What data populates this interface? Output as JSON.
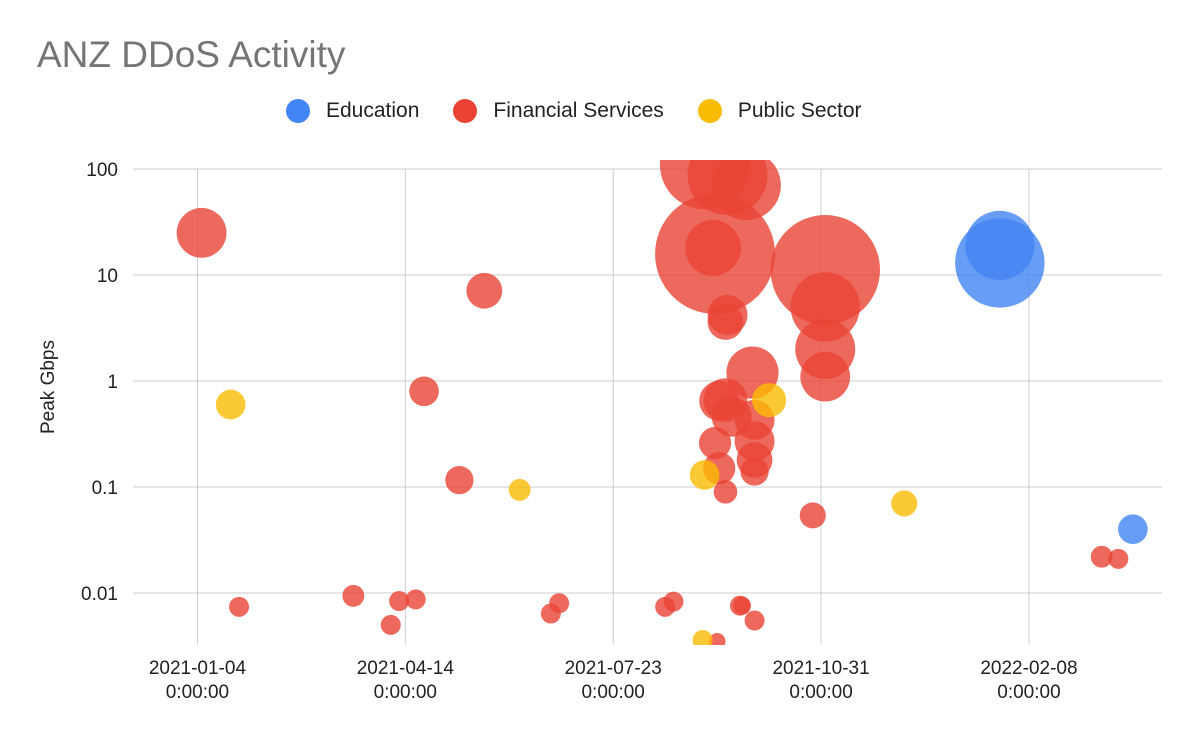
{
  "chart_data": {
    "type": "bubble",
    "title": "ANZ DDoS Activity",
    "xlabel": "",
    "ylabel": "Peak Gbps",
    "yscale": "log",
    "ylim": [
      0.0033,
      100
    ],
    "xlim": [
      "2020-12-04",
      "2022-04-13"
    ],
    "yticks": [
      "100",
      "10",
      "1",
      "0.1",
      "0.01"
    ],
    "xticks": [
      [
        "2021-01-04",
        "0:00:00"
      ],
      [
        "2021-04-14",
        "0:00:00"
      ],
      [
        "2021-07-23",
        "0:00:00"
      ],
      [
        "2021-10-31",
        "0:00:00"
      ],
      [
        "2022-02-08",
        "0:00:00"
      ]
    ],
    "grid": true,
    "legend": "top",
    "series": [
      {
        "name": "Education",
        "color": "#4285F4",
        "points": [
          {
            "x": "2022-01-25",
            "y": 19,
            "size": 12
          },
          {
            "x": "2022-01-25",
            "y": 13,
            "size": 20
          },
          {
            "x": "2022-03-30",
            "y": 0.04,
            "size": 2.2
          }
        ]
      },
      {
        "name": "Financial Services",
        "color": "#EA4335",
        "points": [
          {
            "x": "2021-01-06",
            "y": 25,
            "size": 6.2
          },
          {
            "x": "2021-01-24",
            "y": 0.0074,
            "size": 1
          },
          {
            "x": "2021-03-20",
            "y": 0.0094,
            "size": 1.2
          },
          {
            "x": "2021-04-07",
            "y": 0.005,
            "size": 1
          },
          {
            "x": "2021-04-11",
            "y": 0.0084,
            "size": 1
          },
          {
            "x": "2021-04-19",
            "y": 0.0087,
            "size": 1
          },
          {
            "x": "2021-04-23",
            "y": 0.8,
            "size": 2.2
          },
          {
            "x": "2021-05-10",
            "y": 0.116,
            "size": 2
          },
          {
            "x": "2021-05-22",
            "y": 7.1,
            "size": 3.2
          },
          {
            "x": "2021-06-23",
            "y": 0.0064,
            "size": 1
          },
          {
            "x": "2021-06-27",
            "y": 0.008,
            "size": 1
          },
          {
            "x": "2021-08-17",
            "y": 0.0074,
            "size": 1
          },
          {
            "x": "2021-08-21",
            "y": 0.0083,
            "size": 1
          },
          {
            "x": "2021-09-11",
            "y": 0.0035,
            "size": 0.7
          },
          {
            "x": "2021-09-22",
            "y": 0.0076,
            "size": 1
          },
          {
            "x": "2021-09-23",
            "y": 0.0076,
            "size": 0.8
          },
          {
            "x": "2021-09-29",
            "y": 0.0055,
            "size": 1
          },
          {
            "x": "2021-09-10",
            "y": 15.8,
            "size": 36
          },
          {
            "x": "2021-09-09",
            "y": 18,
            "size": 7.8
          },
          {
            "x": "2021-09-05",
            "y": 110,
            "size": 20
          },
          {
            "x": "2021-09-16",
            "y": 88,
            "size": 16
          },
          {
            "x": "2021-09-25",
            "y": 70,
            "size": 12
          },
          {
            "x": "2021-09-16",
            "y": 4.2,
            "size": 4
          },
          {
            "x": "2021-09-15",
            "y": 3.6,
            "size": 3.2
          },
          {
            "x": "2021-11-02",
            "y": 11.2,
            "size": 30
          },
          {
            "x": "2021-11-02",
            "y": 5,
            "size": 12
          },
          {
            "x": "2021-11-02",
            "y": 2,
            "size": 9
          },
          {
            "x": "2021-11-02",
            "y": 1.1,
            "size": 6.2
          },
          {
            "x": "2021-09-28",
            "y": 1.2,
            "size": 6.8
          },
          {
            "x": "2021-09-15",
            "y": 0.66,
            "size": 4.8
          },
          {
            "x": "2021-09-12",
            "y": 0.65,
            "size": 4
          },
          {
            "x": "2021-09-18",
            "y": 0.46,
            "size": 4
          },
          {
            "x": "2021-09-29",
            "y": 0.43,
            "size": 4
          },
          {
            "x": "2021-09-29",
            "y": 0.27,
            "size": 4
          },
          {
            "x": "2021-09-29",
            "y": 0.18,
            "size": 3.2
          },
          {
            "x": "2021-09-29",
            "y": 0.14,
            "size": 2
          },
          {
            "x": "2021-09-10",
            "y": 0.26,
            "size": 2.6
          },
          {
            "x": "2021-09-12",
            "y": 0.15,
            "size": 2.6
          },
          {
            "x": "2021-09-15",
            "y": 0.09,
            "size": 1.4
          },
          {
            "x": "2021-10-27",
            "y": 0.054,
            "size": 1.7
          },
          {
            "x": "2022-03-15",
            "y": 0.022,
            "size": 1.2
          },
          {
            "x": "2022-03-23",
            "y": 0.021,
            "size": 1
          }
        ]
      },
      {
        "name": "Public Sector",
        "color": "#FBBC04",
        "points": [
          {
            "x": "2021-01-20",
            "y": 0.6,
            "size": 2.2
          },
          {
            "x": "2021-06-08",
            "y": 0.094,
            "size": 1.2
          },
          {
            "x": "2021-09-05",
            "y": 0.13,
            "size": 2.2
          },
          {
            "x": "2021-10-06",
            "y": 0.66,
            "size": 2.9
          },
          {
            "x": "2021-12-10",
            "y": 0.07,
            "size": 1.7
          },
          {
            "x": "2021-09-04",
            "y": 0.0036,
            "size": 1
          }
        ]
      }
    ]
  }
}
